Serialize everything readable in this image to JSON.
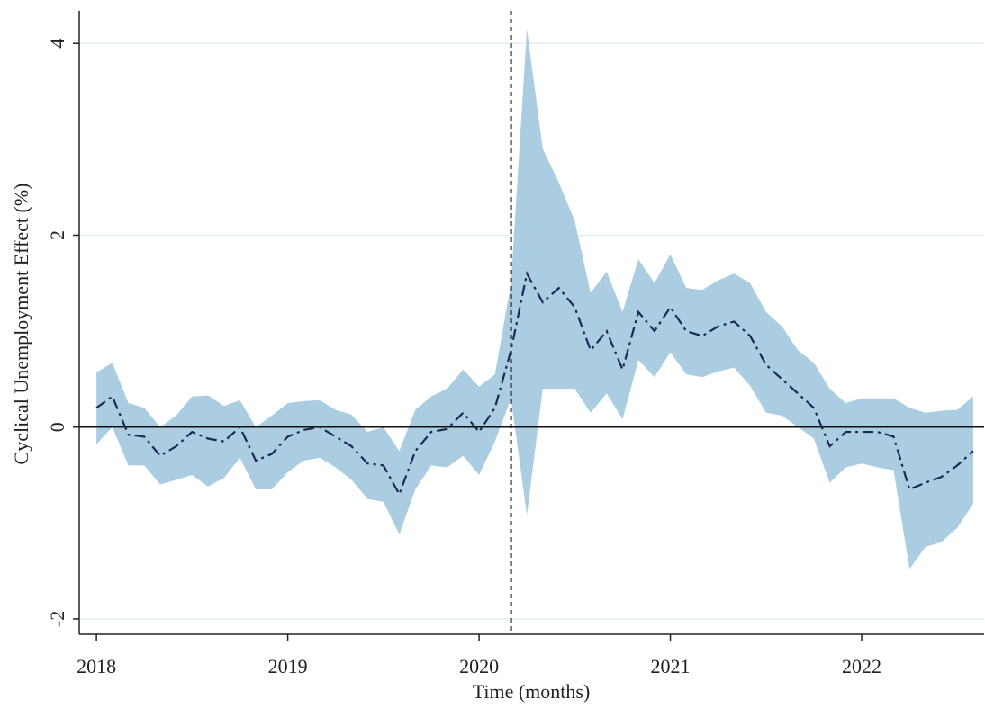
{
  "chart_data": {
    "type": "line",
    "x_label": "Time (months)",
    "y_label": "Cyclical Unemployment Effect (%)",
    "x": [
      2018,
      2018.083,
      2018.167,
      2018.25,
      2018.333,
      2018.417,
      2018.5,
      2018.583,
      2018.667,
      2018.75,
      2018.833,
      2018.917,
      2019,
      2019.083,
      2019.167,
      2019.25,
      2019.333,
      2019.417,
      2019.5,
      2019.583,
      2019.667,
      2019.75,
      2019.833,
      2019.917,
      2020,
      2020.083,
      2020.167,
      2020.25,
      2020.333,
      2020.417,
      2020.5,
      2020.583,
      2020.667,
      2020.75,
      2020.833,
      2020.917,
      2021,
      2021.083,
      2021.167,
      2021.25,
      2021.333,
      2021.417,
      2021.5,
      2021.583,
      2021.667,
      2021.75,
      2021.833,
      2021.917,
      2022,
      2022.083,
      2022.167,
      2022.25,
      2022.333,
      2022.417,
      2022.5,
      2022.583
    ],
    "values": [
      0.2,
      0.32,
      -0.08,
      -0.1,
      -0.3,
      -0.2,
      -0.05,
      -0.12,
      -0.15,
      0.0,
      -0.35,
      -0.28,
      -0.1,
      -0.03,
      0.0,
      -0.1,
      -0.2,
      -0.38,
      -0.4,
      -0.7,
      -0.25,
      -0.05,
      -0.02,
      0.15,
      -0.05,
      0.2,
      0.8,
      1.6,
      1.3,
      1.45,
      1.25,
      0.8,
      1.0,
      0.6,
      1.2,
      1.0,
      1.25,
      1.0,
      0.95,
      1.05,
      1.1,
      0.95,
      0.65,
      0.5,
      0.35,
      0.2,
      -0.2,
      -0.05,
      -0.05,
      -0.05,
      -0.1,
      -0.65,
      -0.58,
      -0.52,
      -0.4,
      -0.25
    ],
    "upper": [
      0.57,
      0.67,
      0.25,
      0.2,
      0.0,
      0.12,
      0.32,
      0.33,
      0.22,
      0.28,
      0.0,
      0.12,
      0.25,
      0.27,
      0.28,
      0.18,
      0.13,
      -0.05,
      0.0,
      -0.25,
      0.18,
      0.32,
      0.4,
      0.6,
      0.42,
      0.55,
      1.5,
      4.15,
      2.9,
      2.55,
      2.15,
      1.4,
      1.62,
      1.2,
      1.75,
      1.5,
      1.8,
      1.45,
      1.43,
      1.53,
      1.6,
      1.5,
      1.2,
      1.05,
      0.8,
      0.67,
      0.4,
      0.25,
      0.3,
      0.3,
      0.3,
      0.2,
      0.15,
      0.17,
      0.18,
      0.32
    ],
    "lower": [
      -0.18,
      0.0,
      -0.4,
      -0.4,
      -0.6,
      -0.55,
      -0.5,
      -0.62,
      -0.53,
      -0.32,
      -0.65,
      -0.65,
      -0.47,
      -0.35,
      -0.32,
      -0.42,
      -0.55,
      -0.75,
      -0.78,
      -1.12,
      -0.65,
      -0.4,
      -0.42,
      -0.3,
      -0.5,
      -0.15,
      0.3,
      -0.92,
      0.4,
      0.4,
      0.4,
      0.15,
      0.35,
      0.08,
      0.7,
      0.52,
      0.78,
      0.55,
      0.52,
      0.58,
      0.62,
      0.43,
      0.15,
      0.12,
      0.0,
      -0.12,
      -0.58,
      -0.42,
      -0.38,
      -0.42,
      -0.45,
      -1.48,
      -1.25,
      -1.2,
      -1.05,
      -0.8
    ],
    "color": "#1a2a50",
    "band_color": "#aacde2",
    "grid_color": "#e2eef2",
    "xlim": [
      2017.91,
      2022.64
    ],
    "ylim": [
      -2.16,
      4.34
    ],
    "xticks": [
      2018,
      2019,
      2020,
      2021,
      2022
    ],
    "yticks": [
      -2,
      0,
      2,
      4
    ],
    "grid": true,
    "hline": 0,
    "vline": 2020.167
  }
}
